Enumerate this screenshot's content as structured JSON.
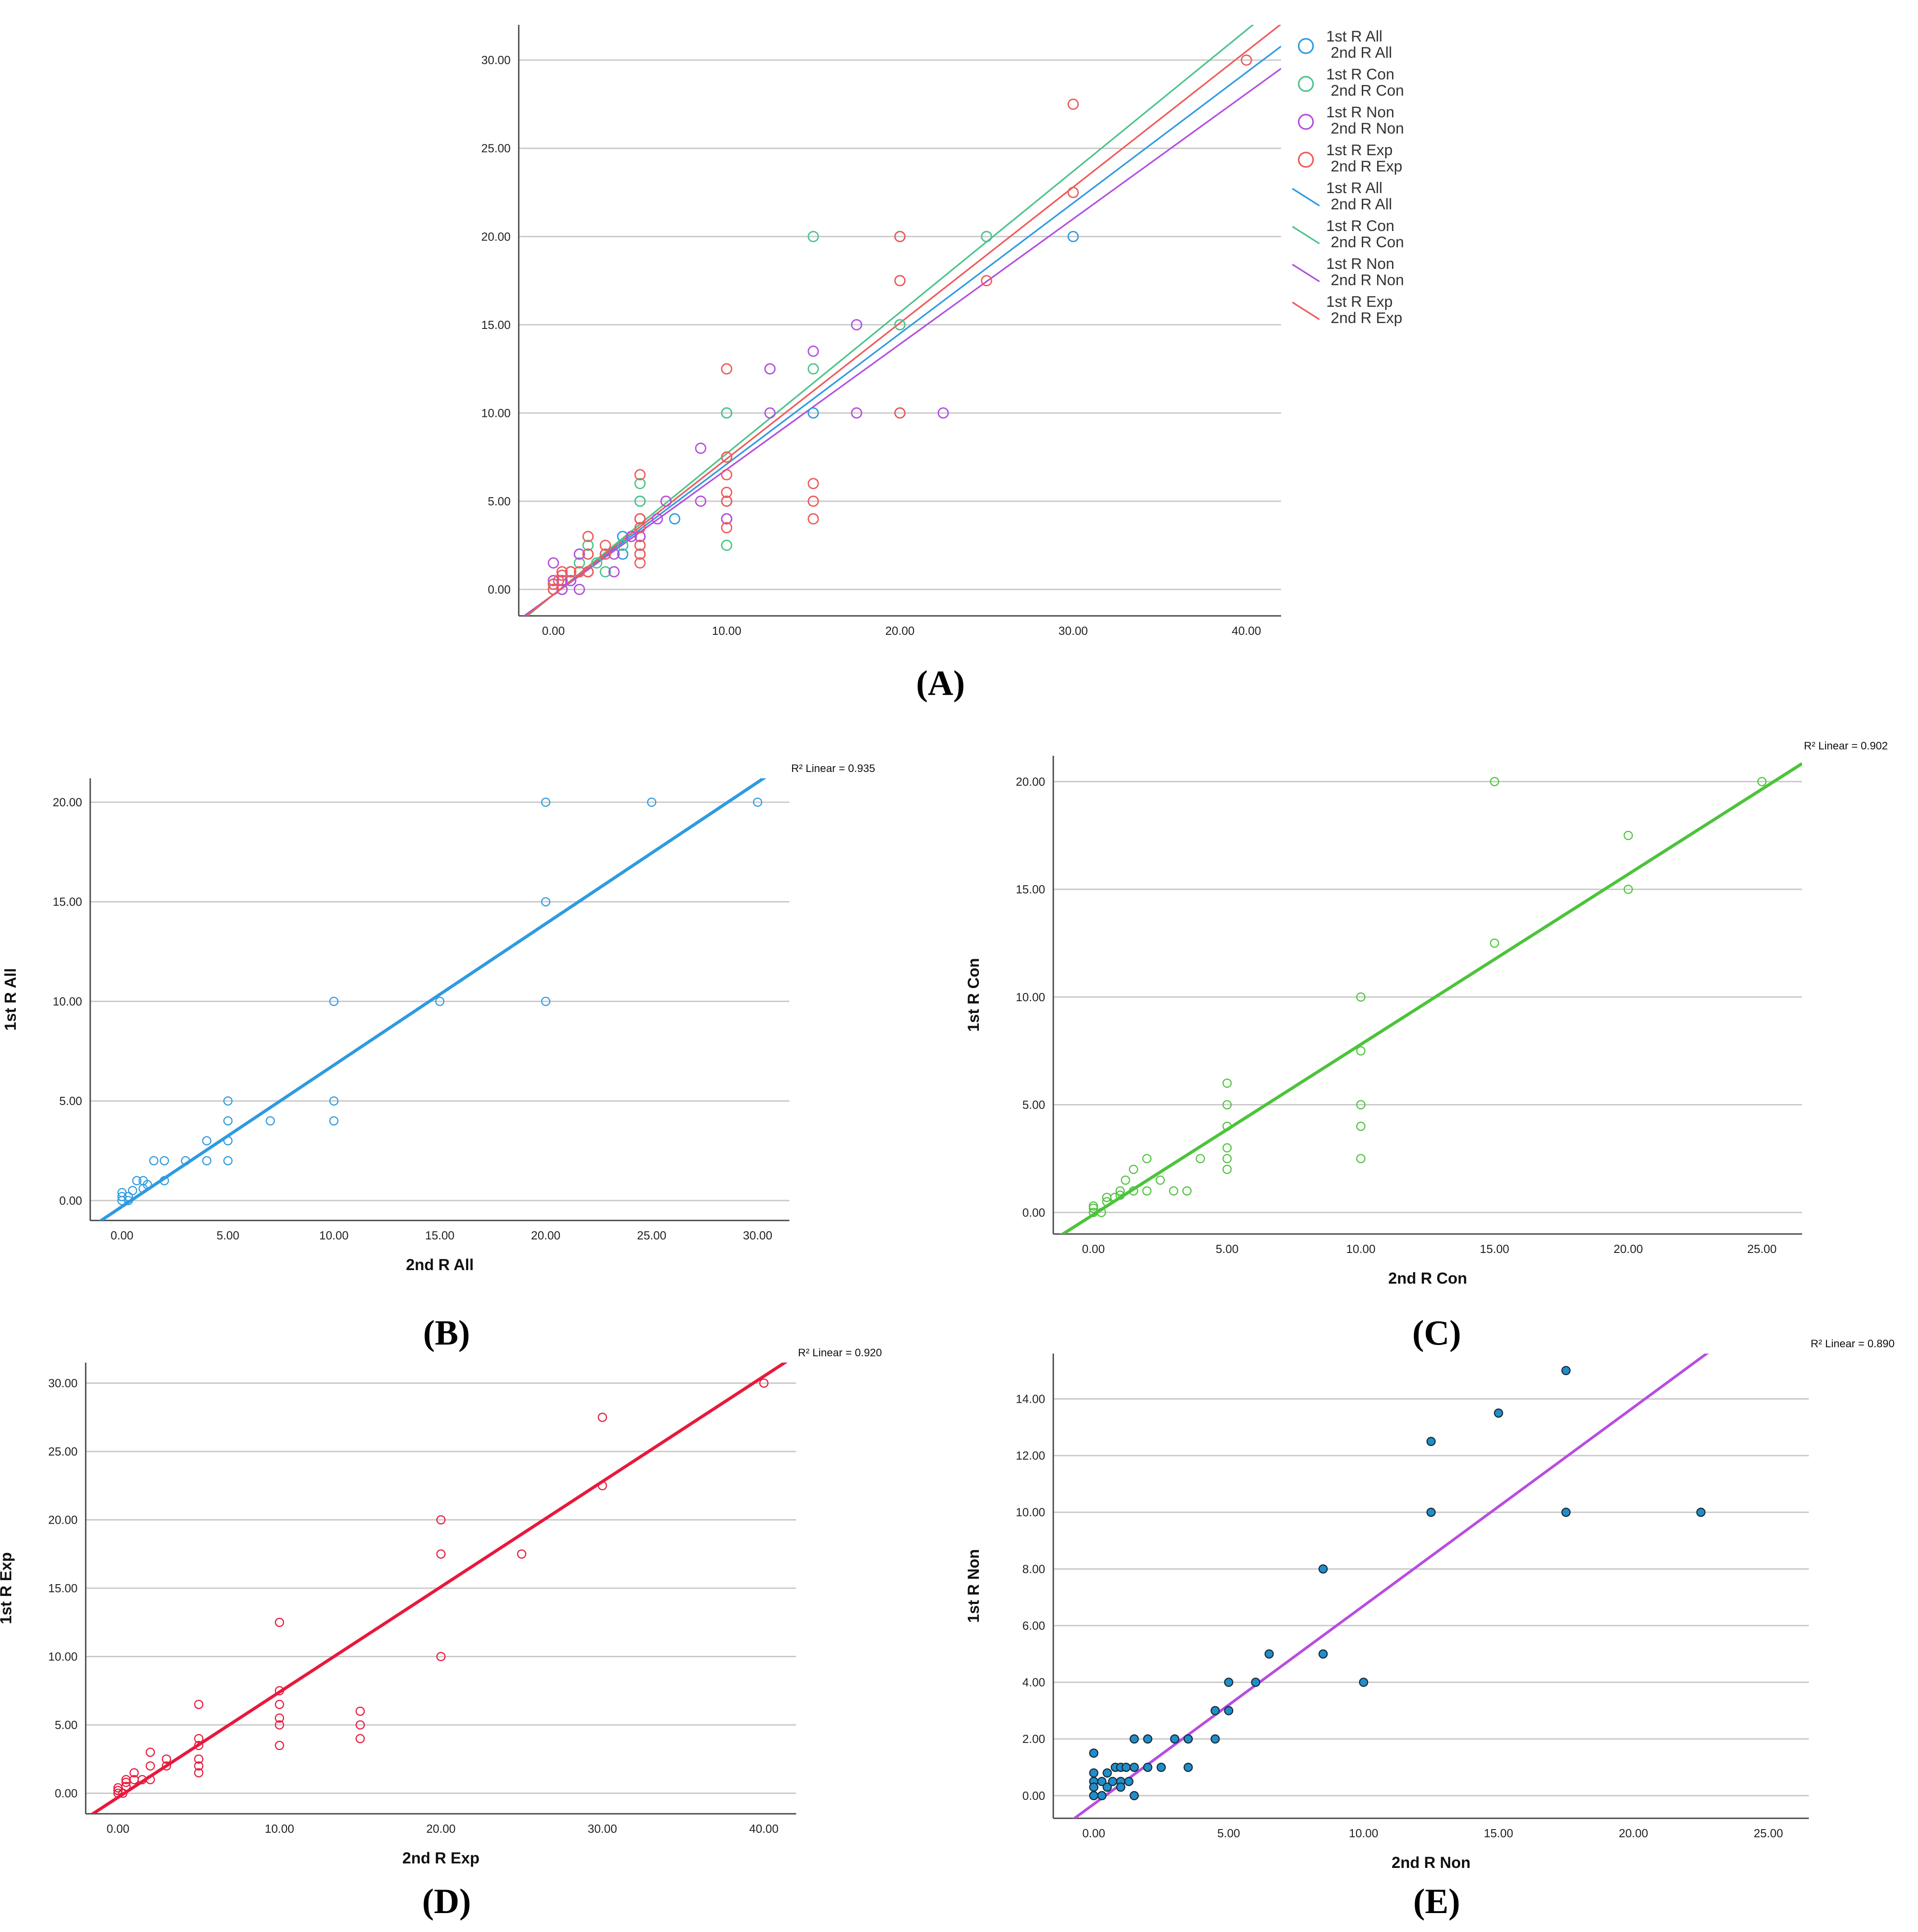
{
  "chart_data": [
    {
      "panel": "(A)",
      "type": "scatter",
      "x_ticks": [
        "0.00",
        "10.00",
        "20.00",
        "30.00",
        "40.00"
      ],
      "y_ticks": [
        "0.00",
        "5.00",
        "10.00",
        "15.00",
        "20.00",
        "25.00",
        "30.00"
      ],
      "xlim": [
        -2,
        42
      ],
      "ylim": [
        -1.5,
        32
      ],
      "grid": "horizontal",
      "legend_placement": "right",
      "legend": [
        {
          "kind": "marker",
          "line1": "1st R All",
          "line2": "2nd R All",
          "color": "#2e9be0"
        },
        {
          "kind": "marker",
          "line1": "1st R Con",
          "line2": "2nd R Con",
          "color": "#4cc48a"
        },
        {
          "kind": "marker",
          "line1": "1st R Non",
          "line2": "2nd R Non",
          "color": "#b34fe0"
        },
        {
          "kind": "marker",
          "line1": "1st R Exp",
          "line2": "2nd R Exp",
          "color": "#f05a5a"
        },
        {
          "kind": "line",
          "line1": "1st R All",
          "line2": "2nd R All",
          "color": "#2e9be0"
        },
        {
          "kind": "line",
          "line1": "1st R Con",
          "line2": "2nd R Con",
          "color": "#4cc48a"
        },
        {
          "kind": "line",
          "line1": "1st R Non",
          "line2": "2nd R Non",
          "color": "#b34fe0"
        },
        {
          "kind": "line",
          "line1": "1st R Exp",
          "line2": "2nd R Exp",
          "color": "#f05a5a"
        }
      ],
      "series": [
        {
          "name": "1st R All / 2nd R All",
          "color": "#2e9be0",
          "marker": "open-circle",
          "fit": [
            -0.3,
            0.74
          ],
          "points": [
            [
              0,
              0
            ],
            [
              0,
              0.3
            ],
            [
              0,
              0.5
            ],
            [
              0.5,
              0
            ],
            [
              0.5,
              0.5
            ],
            [
              1,
              1
            ],
            [
              1,
              0.5
            ],
            [
              1.5,
              2
            ],
            [
              2,
              2
            ],
            [
              2,
              1
            ],
            [
              3,
              2
            ],
            [
              4,
              3
            ],
            [
              4,
              2
            ],
            [
              5,
              5
            ],
            [
              5,
              4
            ],
            [
              5,
              3
            ],
            [
              5,
              2
            ],
            [
              7,
              4
            ],
            [
              10,
              10
            ],
            [
              10,
              5
            ],
            [
              10,
              4
            ],
            [
              15,
              10
            ],
            [
              20,
              20
            ],
            [
              20,
              15
            ],
            [
              20,
              10
            ],
            [
              25,
              20
            ],
            [
              30,
              20
            ]
          ]
        },
        {
          "name": "1st R Con / 2nd R Con",
          "color": "#4cc48a",
          "marker": "open-circle",
          "fit": [
            -0.3,
            0.8
          ],
          "points": [
            [
              0,
              0
            ],
            [
              0,
              0.3
            ],
            [
              0.5,
              0.5
            ],
            [
              0.5,
              0.8
            ],
            [
              1,
              1
            ],
            [
              1.5,
              1.5
            ],
            [
              2,
              2.5
            ],
            [
              2,
              1
            ],
            [
              2.5,
              1.5
            ],
            [
              3,
              1
            ],
            [
              4,
              2.5
            ],
            [
              5,
              6
            ],
            [
              5,
              5
            ],
            [
              5,
              4
            ],
            [
              5,
              3
            ],
            [
              5,
              2.5
            ],
            [
              5,
              2
            ],
            [
              10,
              10
            ],
            [
              10,
              7.5
            ],
            [
              10,
              5
            ],
            [
              10,
              4
            ],
            [
              10,
              2.5
            ],
            [
              15,
              20
            ],
            [
              15,
              12.5
            ],
            [
              20,
              17.5
            ],
            [
              20,
              15
            ],
            [
              25,
              20
            ]
          ]
        },
        {
          "name": "1st R Non / 2nd R Non",
          "color": "#b34fe0",
          "marker": "open-circle",
          "fit": [
            -0.3,
            0.71
          ],
          "points": [
            [
              0,
              1.5
            ],
            [
              0,
              0.5
            ],
            [
              0,
              0
            ],
            [
              0.5,
              0.5
            ],
            [
              0.5,
              0
            ],
            [
              1,
              1
            ],
            [
              1,
              0.5
            ],
            [
              1.5,
              2
            ],
            [
              1.5,
              0
            ],
            [
              2,
              2
            ],
            [
              2,
              1
            ],
            [
              3.5,
              2
            ],
            [
              3.5,
              1
            ],
            [
              4.5,
              3
            ],
            [
              5,
              4
            ],
            [
              5,
              3
            ],
            [
              6,
              4
            ],
            [
              6.5,
              5
            ],
            [
              8.5,
              8
            ],
            [
              8.5,
              5
            ],
            [
              10,
              4
            ],
            [
              12.5,
              12.5
            ],
            [
              12.5,
              10
            ],
            [
              15,
              13.5
            ],
            [
              17.5,
              15
            ],
            [
              17.5,
              10
            ],
            [
              22.5,
              10
            ]
          ]
        },
        {
          "name": "1st R Exp / 2nd R Exp",
          "color": "#f05a5a",
          "marker": "open-circle",
          "fit": [
            -0.3,
            0.77
          ],
          "points": [
            [
              0,
              0
            ],
            [
              0,
              0.3
            ],
            [
              0.3,
              0.5
            ],
            [
              0.5,
              0.8
            ],
            [
              0.5,
              1
            ],
            [
              1,
              1
            ],
            [
              1.5,
              1
            ],
            [
              2,
              3
            ],
            [
              2,
              2
            ],
            [
              2,
              1
            ],
            [
              3,
              2.5
            ],
            [
              3,
              2
            ],
            [
              5,
              6.5
            ],
            [
              5,
              4
            ],
            [
              5,
              3.5
            ],
            [
              5,
              2.5
            ],
            [
              5,
              2
            ],
            [
              5,
              1.5
            ],
            [
              10,
              12.5
            ],
            [
              10,
              7.5
            ],
            [
              10,
              6.5
            ],
            [
              10,
              5.5
            ],
            [
              10,
              5
            ],
            [
              10,
              3.5
            ],
            [
              15,
              6
            ],
            [
              15,
              5
            ],
            [
              15,
              4
            ],
            [
              20,
              20
            ],
            [
              20,
              17.5
            ],
            [
              20,
              10
            ],
            [
              25,
              17.5
            ],
            [
              30,
              27.5
            ],
            [
              30,
              22.5
            ],
            [
              40,
              30
            ]
          ]
        }
      ]
    },
    {
      "panel": "(B)",
      "type": "scatter",
      "xlabel": "2nd R All",
      "ylabel": "1st R All",
      "r2_label": "R² Linear = 0.935",
      "x_ticks": [
        "0.00",
        "5.00",
        "10.00",
        "15.00",
        "20.00",
        "25.00",
        "30.00"
      ],
      "y_ticks": [
        "0.00",
        "5.00",
        "10.00",
        "15.00",
        "20.00"
      ],
      "xlim": [
        -1.5,
        31.5
      ],
      "ylim": [
        -1,
        21.2
      ],
      "grid": "horizontal",
      "color": "#2e9be0",
      "fit": [
        -0.3,
        0.71
      ],
      "points": [
        [
          0,
          0
        ],
        [
          0,
          0.2
        ],
        [
          0,
          0.4
        ],
        [
          0.3,
          0
        ],
        [
          0.3,
          0.2
        ],
        [
          0.5,
          0.5
        ],
        [
          0.7,
          1
        ],
        [
          1,
          1
        ],
        [
          1,
          0.6
        ],
        [
          1.2,
          0.8
        ],
        [
          1.5,
          2
        ],
        [
          2,
          2
        ],
        [
          2,
          1
        ],
        [
          3,
          2
        ],
        [
          4,
          3
        ],
        [
          4,
          2
        ],
        [
          5,
          5
        ],
        [
          5,
          4
        ],
        [
          5,
          3
        ],
        [
          5,
          2
        ],
        [
          7,
          4
        ],
        [
          10,
          10
        ],
        [
          10,
          5
        ],
        [
          10,
          4
        ],
        [
          15,
          10
        ],
        [
          20,
          20
        ],
        [
          20,
          15
        ],
        [
          20,
          10
        ],
        [
          25,
          20
        ],
        [
          30,
          20
        ]
      ]
    },
    {
      "panel": "(C)",
      "type": "scatter",
      "xlabel": "2nd R Con",
      "ylabel": "1st R Con",
      "r2_label": "R² Linear = 0.902",
      "x_ticks": [
        "0.00",
        "5.00",
        "10.00",
        "15.00",
        "20.00",
        "25.00"
      ],
      "y_ticks": [
        "0.00",
        "5.00",
        "10.00",
        "15.00",
        "20.00"
      ],
      "xlim": [
        -1.5,
        26.5
      ],
      "ylim": [
        -1,
        21.2
      ],
      "grid": "horizontal",
      "color": "#4cc43a",
      "fit": [
        -0.1,
        0.79
      ],
      "points": [
        [
          0,
          0
        ],
        [
          0,
          0.2
        ],
        [
          0,
          0.3
        ],
        [
          0.3,
          0
        ],
        [
          0.5,
          0.5
        ],
        [
          0.5,
          0.7
        ],
        [
          0.8,
          0.7
        ],
        [
          1,
          1
        ],
        [
          1,
          0.8
        ],
        [
          1.2,
          1.5
        ],
        [
          1.5,
          2
        ],
        [
          1.5,
          1
        ],
        [
          2,
          2.5
        ],
        [
          2,
          1
        ],
        [
          2.5,
          1.5
        ],
        [
          3,
          1
        ],
        [
          3.5,
          1
        ],
        [
          4,
          2.5
        ],
        [
          5,
          6
        ],
        [
          5,
          5
        ],
        [
          5,
          4
        ],
        [
          5,
          3
        ],
        [
          5,
          2.5
        ],
        [
          5,
          2
        ],
        [
          10,
          10
        ],
        [
          10,
          7.5
        ],
        [
          10,
          5
        ],
        [
          10,
          4
        ],
        [
          10,
          2.5
        ],
        [
          15,
          20
        ],
        [
          15,
          12.5
        ],
        [
          20,
          17.5
        ],
        [
          20,
          15
        ],
        [
          25,
          20
        ]
      ]
    },
    {
      "panel": "(D)",
      "type": "scatter",
      "xlabel": "2nd R Exp",
      "ylabel": "1st R Exp",
      "r2_label": "R² Linear = 0.920",
      "x_ticks": [
        "0.00",
        "10.00",
        "20.00",
        "30.00",
        "40.00"
      ],
      "y_ticks": [
        "0.00",
        "5.00",
        "10.00",
        "15.00",
        "20.00",
        "25.00",
        "30.00"
      ],
      "xlim": [
        -2,
        42
      ],
      "ylim": [
        -1.5,
        31.5
      ],
      "grid": "horizontal",
      "color": "#e8193c",
      "fit": [
        -0.3,
        0.77
      ],
      "points": [
        [
          0,
          0
        ],
        [
          0,
          0.2
        ],
        [
          0,
          0.4
        ],
        [
          0.3,
          0
        ],
        [
          0.5,
          0.5
        ],
        [
          0.5,
          0.8
        ],
        [
          0.5,
          1
        ],
        [
          1,
          1
        ],
        [
          1,
          1.5
        ],
        [
          1.5,
          1
        ],
        [
          2,
          3
        ],
        [
          2,
          2
        ],
        [
          2,
          1
        ],
        [
          3,
          2.5
        ],
        [
          3,
          2
        ],
        [
          5,
          6.5
        ],
        [
          5,
          4
        ],
        [
          5,
          3.5
        ],
        [
          5,
          2.5
        ],
        [
          5,
          2
        ],
        [
          5,
          1.5
        ],
        [
          10,
          12.5
        ],
        [
          10,
          7.5
        ],
        [
          10,
          6.5
        ],
        [
          10,
          5.5
        ],
        [
          10,
          5
        ],
        [
          10,
          3.5
        ],
        [
          15,
          6
        ],
        [
          15,
          5
        ],
        [
          15,
          4
        ],
        [
          20,
          20
        ],
        [
          20,
          17.5
        ],
        [
          20,
          10
        ],
        [
          25,
          17.5
        ],
        [
          30,
          27.5
        ],
        [
          30,
          22.5
        ],
        [
          40,
          30
        ]
      ]
    },
    {
      "panel": "(E)",
      "type": "scatter",
      "xlabel": "2nd R Non",
      "ylabel": "1st R Non",
      "r2_label": "R² Linear = 0.890",
      "x_ticks": [
        "0.00",
        "5.00",
        "10.00",
        "15.00",
        "20.00",
        "25.00"
      ],
      "y_ticks": [
        "0.00",
        "2.00",
        "4.00",
        "6.00",
        "8.00",
        "10.00",
        "12.00",
        "14.00"
      ],
      "xlim": [
        -1.5,
        26.5
      ],
      "ylim": [
        -0.8,
        15.6
      ],
      "grid": "horizontal",
      "color": "#1f8fc9",
      "line_color": "#b84de0",
      "fit": [
        -0.3,
        0.7
      ],
      "points": [
        [
          0,
          1.5
        ],
        [
          0,
          0.8
        ],
        [
          0,
          0.5
        ],
        [
          0,
          0.3
        ],
        [
          0,
          0
        ],
        [
          0.3,
          0.5
        ],
        [
          0.3,
          0
        ],
        [
          0.5,
          0.8
        ],
        [
          0.5,
          0.3
        ],
        [
          0.7,
          0.5
        ],
        [
          0.8,
          1
        ],
        [
          1,
          1
        ],
        [
          1,
          0.5
        ],
        [
          1,
          0.3
        ],
        [
          1.2,
          1
        ],
        [
          1.3,
          0.5
        ],
        [
          1.5,
          2
        ],
        [
          1.5,
          1
        ],
        [
          1.5,
          0
        ],
        [
          2,
          2
        ],
        [
          2,
          1
        ],
        [
          2.5,
          1
        ],
        [
          3,
          2
        ],
        [
          3.5,
          2
        ],
        [
          3.5,
          1
        ],
        [
          4.5,
          3
        ],
        [
          4.5,
          2
        ],
        [
          5,
          4
        ],
        [
          5,
          3
        ],
        [
          6,
          4
        ],
        [
          6.5,
          5
        ],
        [
          8.5,
          8
        ],
        [
          8.5,
          5
        ],
        [
          10,
          4
        ],
        [
          12.5,
          12.5
        ],
        [
          12.5,
          10
        ],
        [
          15,
          13.5
        ],
        [
          17.5,
          15
        ],
        [
          17.5,
          10
        ],
        [
          22.5,
          10
        ]
      ]
    }
  ],
  "panels": {
    "a": {
      "label": "(A)"
    },
    "b": {
      "label": "(B)"
    },
    "c": {
      "label": "(C)"
    },
    "d": {
      "label": "(D)"
    },
    "e": {
      "label": "(E)"
    }
  }
}
